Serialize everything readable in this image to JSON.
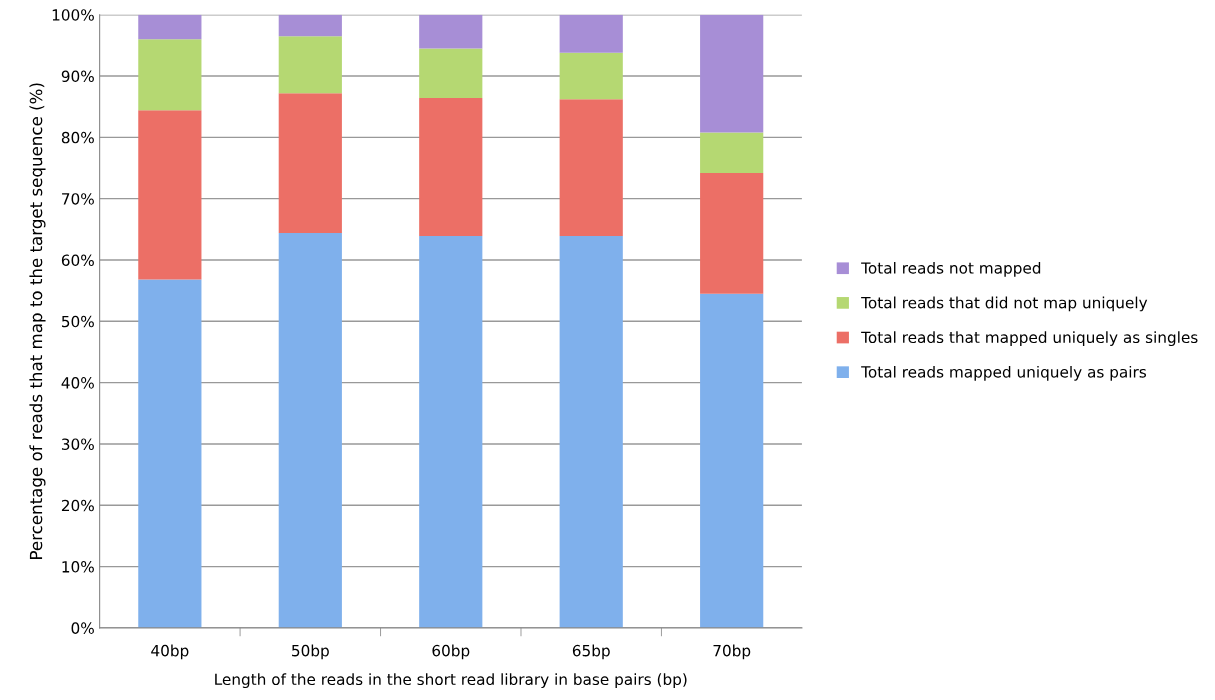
{
  "chart_data": {
    "type": "bar",
    "stacked": true,
    "xlabel": "Length of the reads in the short read library in base pairs (bp)",
    "ylabel": "Percentage of reads that map to the target sequence (%)",
    "categories": [
      "40bp",
      "50bp",
      "60bp",
      "65bp",
      "70bp"
    ],
    "series": [
      {
        "name": "Total reads mapped uniquely as pairs",
        "color": "#7fb0ec",
        "values": [
          56.8,
          64.4,
          63.9,
          63.9,
          54.5
        ]
      },
      {
        "name": "Total reads that mapped uniquely as singles",
        "color": "#ec6f66",
        "values": [
          27.6,
          22.8,
          22.5,
          22.3,
          19.7
        ]
      },
      {
        "name": "Total reads that did not map uniquely",
        "color": "#b5d872",
        "values": [
          11.6,
          9.3,
          8.1,
          7.6,
          6.6
        ]
      },
      {
        "name": "Total reads not mapped",
        "color": "#a78ed6",
        "values": [
          4.0,
          3.5,
          5.5,
          6.2,
          19.2
        ]
      }
    ],
    "ylim": [
      0,
      100
    ],
    "yticks": [
      {
        "value": 0,
        "label": "0%"
      },
      {
        "value": 10,
        "label": "10%"
      },
      {
        "value": 20,
        "label": "20%"
      },
      {
        "value": 30,
        "label": "30%"
      },
      {
        "value": 40,
        "label": "40%"
      },
      {
        "value": 50,
        "label": "50%"
      },
      {
        "value": 60,
        "label": "60%"
      },
      {
        "value": 70,
        "label": "70%"
      },
      {
        "value": 80,
        "label": "80%"
      },
      {
        "value": 90,
        "label": "90%"
      },
      {
        "value": 100,
        "label": "100%"
      }
    ],
    "grid": "y",
    "legend": "right"
  }
}
